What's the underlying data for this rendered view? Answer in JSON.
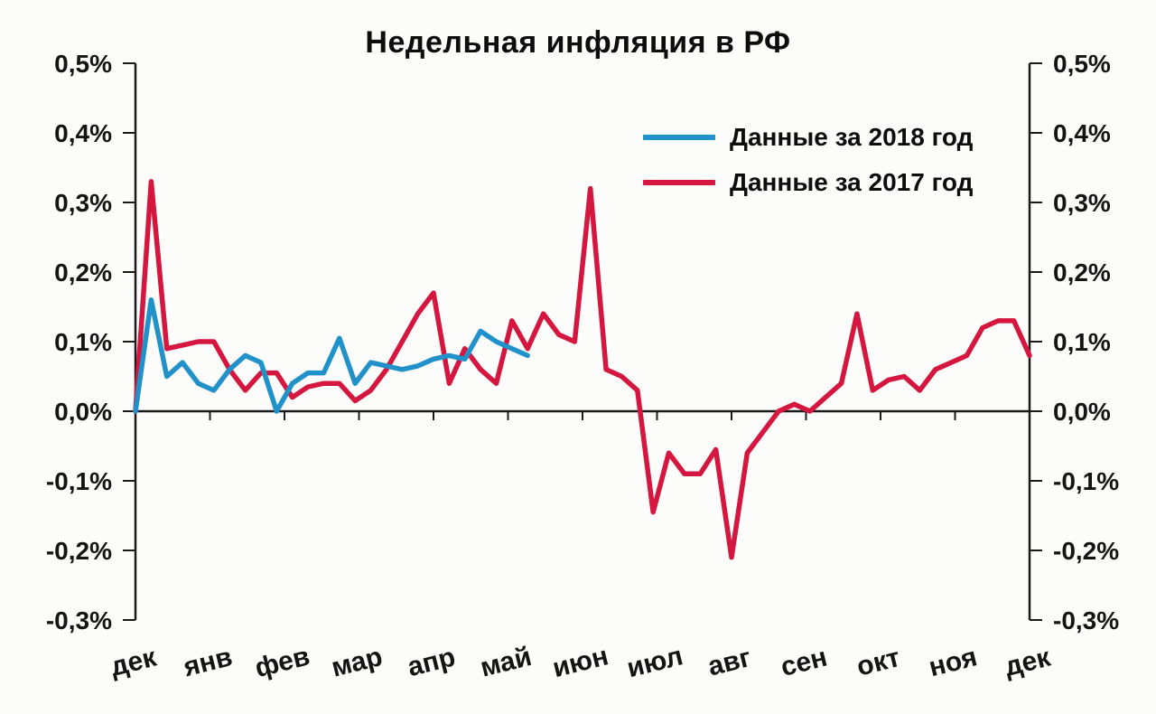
{
  "chart_data": {
    "type": "line",
    "title": "Недельная инфляция в РФ",
    "x_categories": [
      "дек",
      "янв",
      "фев",
      "мар",
      "апр",
      "май",
      "июн",
      "июл",
      "авг",
      "сен",
      "окт",
      "ноя",
      "дек"
    ],
    "ylim": [
      -0.3,
      0.5
    ],
    "y_tick_step": 0.1,
    "y_tick_format": "percent-comma-ru",
    "grid": false,
    "legend_position": "inside-top-right",
    "axis_color": "#1a1a1a",
    "background_color": "#fcfcfb",
    "series": [
      {
        "name": "Данные за 2018 год",
        "color": "#2191c9",
        "values": [
          0.0,
          0.16,
          0.05,
          0.07,
          0.04,
          0.03,
          0.06,
          0.08,
          0.07,
          0.0,
          0.04,
          0.055,
          0.055,
          0.105,
          0.04,
          0.07,
          0.065,
          0.06,
          0.065,
          0.075,
          0.08,
          0.075,
          0.115,
          0.1,
          0.09,
          0.08
        ]
      },
      {
        "name": "Данные за 2017 год",
        "color": "#d5163f",
        "values": [
          0.0,
          0.33,
          0.09,
          0.095,
          0.1,
          0.1,
          0.06,
          0.03,
          0.055,
          0.055,
          0.02,
          0.035,
          0.04,
          0.04,
          0.015,
          0.03,
          0.06,
          0.1,
          0.14,
          0.17,
          0.04,
          0.09,
          0.06,
          0.04,
          0.13,
          0.09,
          0.14,
          0.11,
          0.1,
          0.32,
          0.06,
          0.05,
          0.03,
          -0.145,
          -0.06,
          -0.09,
          -0.09,
          -0.055,
          -0.21,
          -0.06,
          -0.03,
          0.0,
          0.01,
          0.0,
          0.02,
          0.04,
          0.14,
          0.03,
          0.045,
          0.05,
          0.03,
          0.06,
          0.07,
          0.08,
          0.12,
          0.13,
          0.13,
          0.08
        ]
      }
    ]
  }
}
